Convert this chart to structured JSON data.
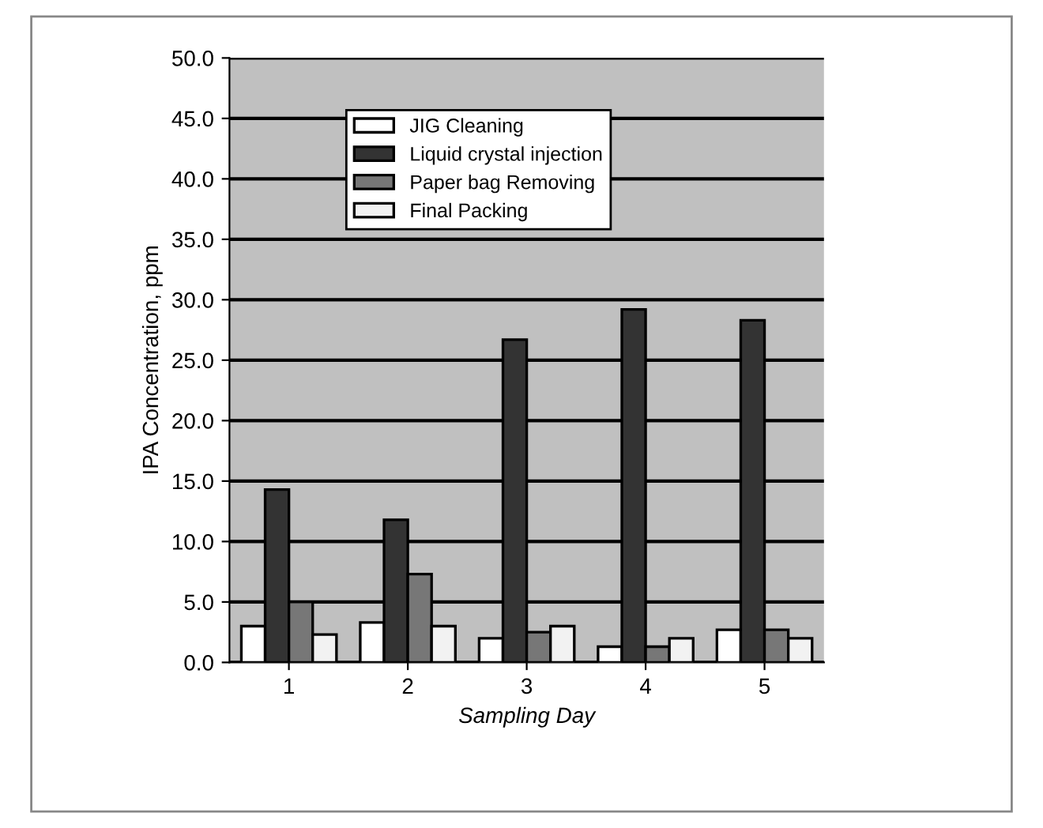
{
  "chart_data": {
    "type": "bar",
    "categories": [
      "1",
      "2",
      "3",
      "4",
      "5"
    ],
    "series": [
      {
        "name": "JIG Cleaning",
        "color": "#ffffff",
        "values": [
          3.0,
          3.3,
          2.0,
          1.3,
          2.7
        ]
      },
      {
        "name": "Liquid crystal injection",
        "color": "#333333",
        "values": [
          14.3,
          11.8,
          26.7,
          29.2,
          28.3
        ]
      },
      {
        "name": "Paper bag Removing",
        "color": "#777777",
        "values": [
          5.0,
          7.3,
          2.5,
          1.3,
          2.7
        ]
      },
      {
        "name": "Final Packing",
        "color": "#f2f2f2",
        "values": [
          2.3,
          3.0,
          3.0,
          2.0,
          2.0
        ]
      }
    ],
    "xlabel": "Sampling Day",
    "ylabel": "IPA Concentration, ppm",
    "ylim": [
      0,
      50
    ],
    "yticks": [
      {
        "value": 0,
        "label": "0.0"
      },
      {
        "value": 5,
        "label": "5.0"
      },
      {
        "value": 10,
        "label": "10.0"
      },
      {
        "value": 15,
        "label": "15.0"
      },
      {
        "value": 20,
        "label": "20.0"
      },
      {
        "value": 25,
        "label": "25.0"
      },
      {
        "value": 30,
        "label": "30.0"
      },
      {
        "value": 35,
        "label": "35.0"
      },
      {
        "value": 40,
        "label": "40.0"
      },
      {
        "value": 45,
        "label": "45.0"
      },
      {
        "value": 50,
        "label": "50.0"
      }
    ],
    "grid": "y",
    "legend": "top left"
  }
}
